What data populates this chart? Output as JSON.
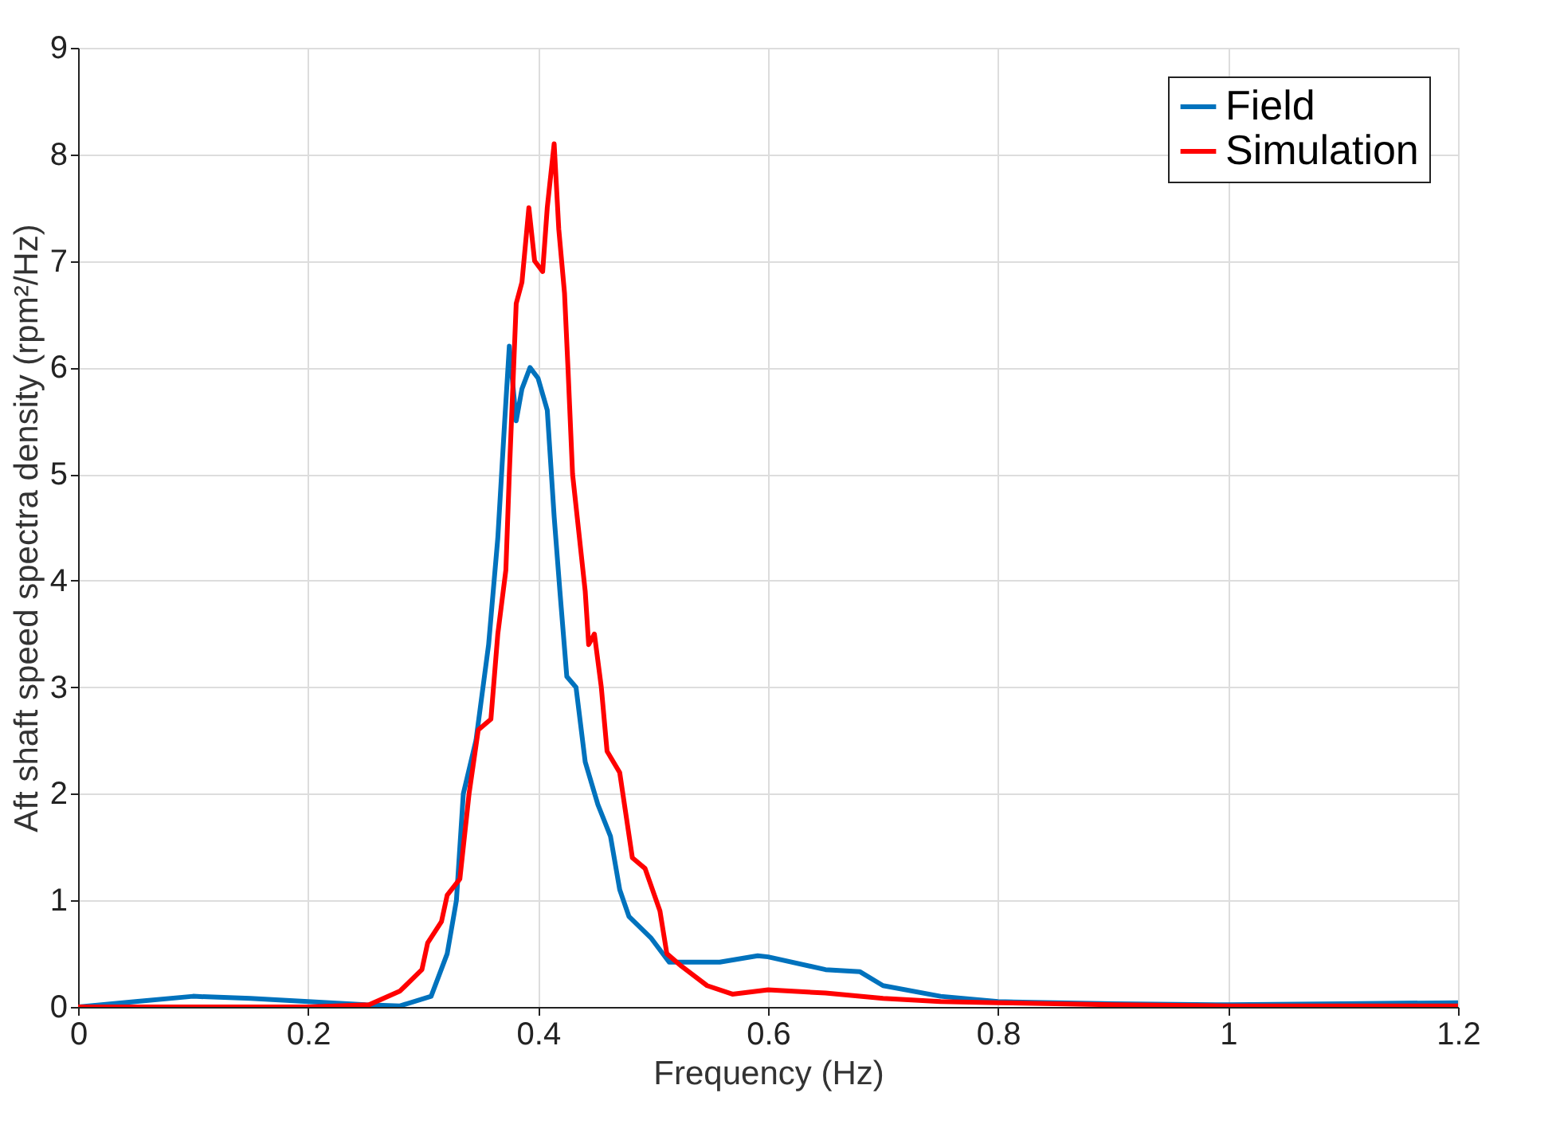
{
  "chart_data": {
    "type": "line",
    "xlabel": "Frequency (Hz)",
    "ylabel": "Aft shaft speed spectra density (rpm²/Hz)",
    "xlim": [
      0,
      1.2
    ],
    "ylim": [
      0,
      9
    ],
    "xticks": [
      0,
      0.2,
      0.4,
      0.6,
      0.8,
      1,
      1.2
    ],
    "yticks": [
      0,
      1,
      2,
      3,
      4,
      5,
      6,
      7,
      8,
      9
    ],
    "grid": true,
    "legend": "top right",
    "marker": "none",
    "line_style": "solid",
    "series": [
      {
        "name": "Field",
        "color": "#0072bd",
        "x": [
          0,
          0.05,
          0.1,
          0.15,
          0.2,
          0.25,
          0.28,
          0.307,
          0.321,
          0.329,
          0.335,
          0.346,
          0.357,
          0.365,
          0.371,
          0.375,
          0.381,
          0.386,
          0.393,
          0.4,
          0.408,
          0.414,
          0.419,
          0.425,
          0.433,
          0.441,
          0.452,
          0.463,
          0.471,
          0.479,
          0.498,
          0.514,
          0.536,
          0.558,
          0.591,
          0.6,
          0.65,
          0.68,
          0.7,
          0.75,
          0.8,
          0.9,
          1.0,
          1.1,
          1.2
        ],
        "values": [
          0,
          0.05,
          0.1,
          0.08,
          0.05,
          0.02,
          0.01,
          0.1,
          0.5,
          1.0,
          2.0,
          2.5,
          3.4,
          4.4,
          5.5,
          6.2,
          5.5,
          5.8,
          6.0,
          5.9,
          5.6,
          4.6,
          3.9,
          3.1,
          3.0,
          2.3,
          1.9,
          1.6,
          1.1,
          0.85,
          0.65,
          0.42,
          0.42,
          0.42,
          0.48,
          0.47,
          0.35,
          0.33,
          0.2,
          0.1,
          0.05,
          0.03,
          0.02,
          0.03,
          0.04
        ]
      },
      {
        "name": "Simulation",
        "color": "#ff0000",
        "x": [
          0,
          0.1,
          0.2,
          0.253,
          0.28,
          0.299,
          0.304,
          0.316,
          0.321,
          0.332,
          0.34,
          0.348,
          0.359,
          0.365,
          0.372,
          0.375,
          0.381,
          0.386,
          0.392,
          0.397,
          0.404,
          0.408,
          0.414,
          0.418,
          0.423,
          0.426,
          0.43,
          0.435,
          0.441,
          0.444,
          0.449,
          0.455,
          0.46,
          0.471,
          0.482,
          0.493,
          0.506,
          0.512,
          0.525,
          0.547,
          0.569,
          0.6,
          0.65,
          0.7,
          0.75,
          0.8,
          0.9,
          1.0,
          1.2
        ],
        "values": [
          0,
          0,
          0,
          0.02,
          0.15,
          0.35,
          0.6,
          0.8,
          1.05,
          1.2,
          2.0,
          2.6,
          2.7,
          3.5,
          4.1,
          5.0,
          6.6,
          6.8,
          7.5,
          7.0,
          6.9,
          7.5,
          8.1,
          7.3,
          6.7,
          6.0,
          5.0,
          4.5,
          3.9,
          3.4,
          3.5,
          3.0,
          2.4,
          2.2,
          1.4,
          1.3,
          0.9,
          0.5,
          0.38,
          0.2,
          0.12,
          0.16,
          0.13,
          0.08,
          0.05,
          0.04,
          0.02,
          0.01,
          0.01
        ]
      }
    ]
  }
}
